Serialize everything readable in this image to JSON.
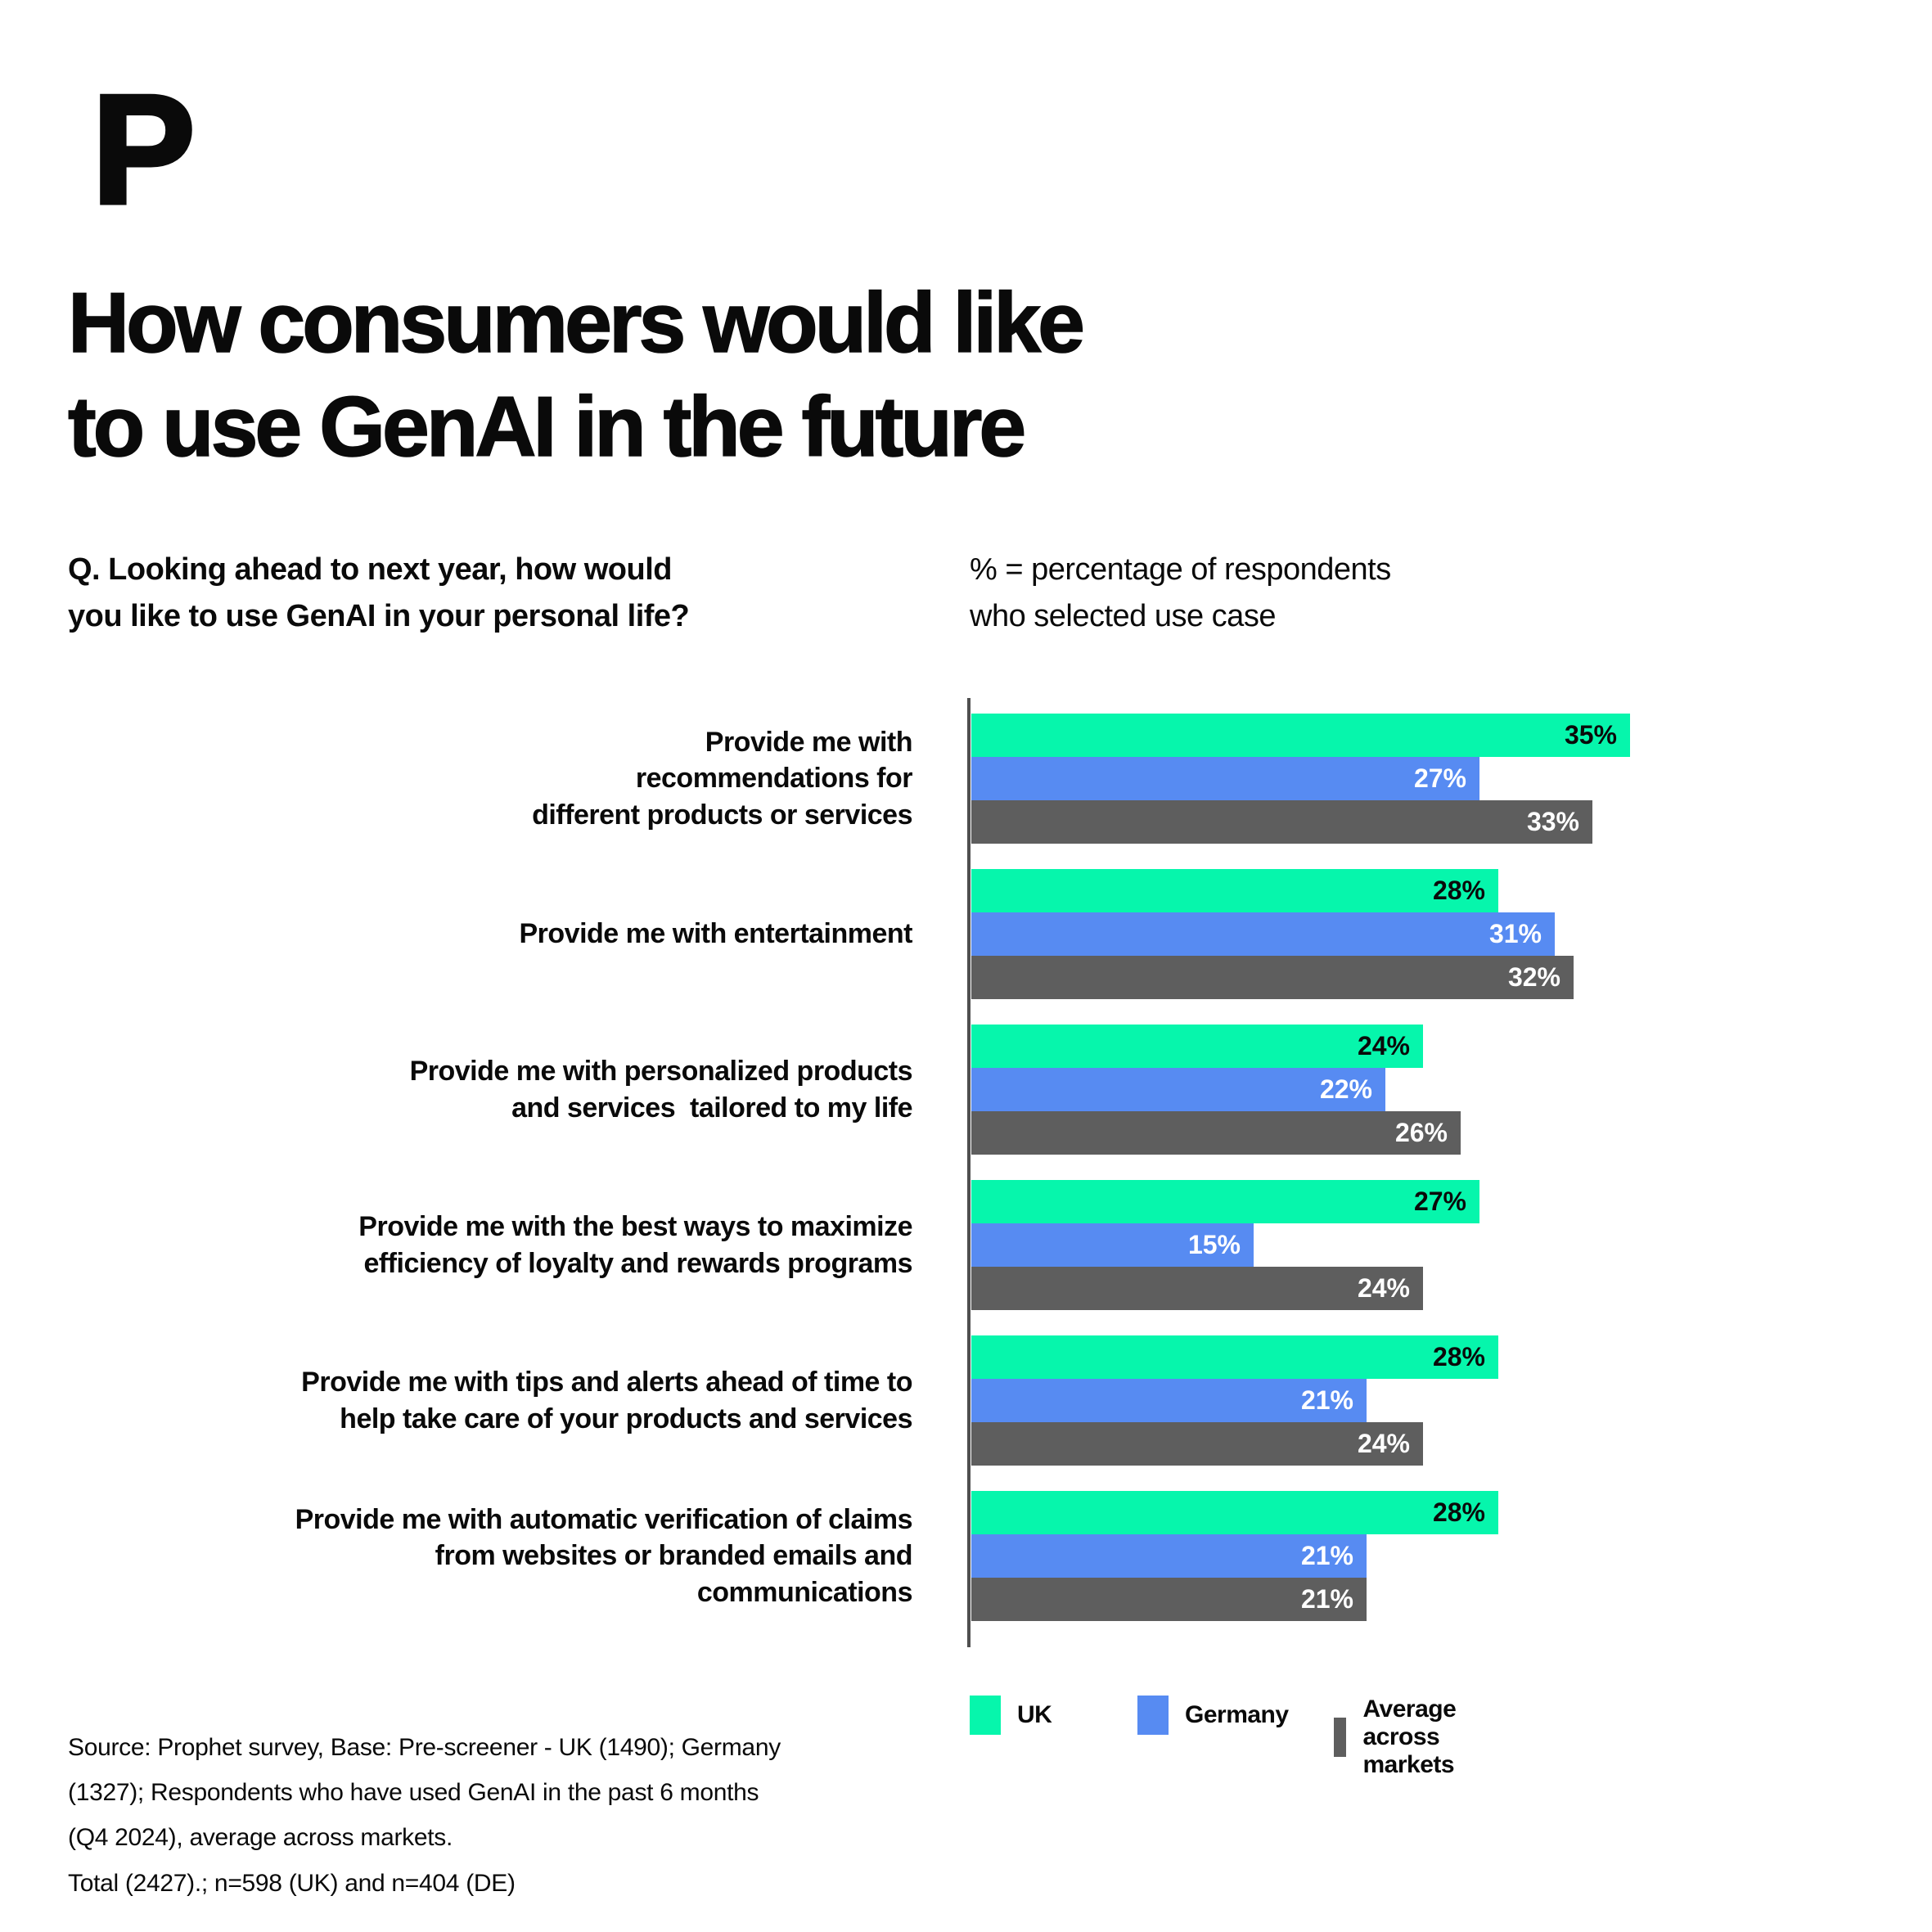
{
  "logo": {
    "text": "P"
  },
  "title": "How consumers would like\nto use GenAI in the future",
  "question": "Q. Looking ahead to next year, how would\nyou like to use GenAI in your personal life?",
  "note": "% = percentage of respondents\nwho selected use case",
  "source": "Source: Prophet survey, Base: Pre-screener - UK (1490); Germany\n(1327); Respondents who have used GenAI in the past 6 months\n(Q4 2024), average across markets.\nTotal (2427).; n=598 (UK) and n=404 (DE)",
  "colors": {
    "uk": "#06F6AC",
    "germany": "#578BF2",
    "average": "#5E5E5E",
    "axis": "#4F4F4F",
    "text": "#0A0A0A",
    "label_on_uk": "#0A0A0A",
    "label_on_germany": "#FFFFFF",
    "label_on_average": "#FFFFFF"
  },
  "chart_data": {
    "type": "bar",
    "orientation": "horizontal",
    "title": "How consumers would like to use GenAI in the future",
    "value_suffix": "%",
    "xlim": [
      0,
      40
    ],
    "grid": false,
    "legend_position": "bottom",
    "categories": [
      "Provide me with\nrecommendations for\ndifferent products or services",
      "Provide me with entertainment",
      "Provide me with personalized products\nand services  tailored to my life",
      "Provide me with the best ways to maximize\nefficiency of loyalty and rewards programs",
      "Provide me with tips and alerts ahead of time to\nhelp take care of your products and services",
      "Provide me with automatic verification of claims\nfrom websites or branded emails and\ncommunications"
    ],
    "series": [
      {
        "name": "UK",
        "color": "#06F6AC",
        "label_color": "#0A0A0A",
        "values": [
          35,
          28,
          24,
          27,
          28,
          28
        ]
      },
      {
        "name": "Germany",
        "color": "#578BF2",
        "label_color": "#FFFFFF",
        "values": [
          27,
          31,
          22,
          15,
          21,
          21
        ]
      },
      {
        "name": "Average across markets",
        "color": "#5E5E5E",
        "label_color": "#FFFFFF",
        "values": [
          33,
          32,
          26,
          24,
          24,
          21
        ]
      }
    ]
  }
}
